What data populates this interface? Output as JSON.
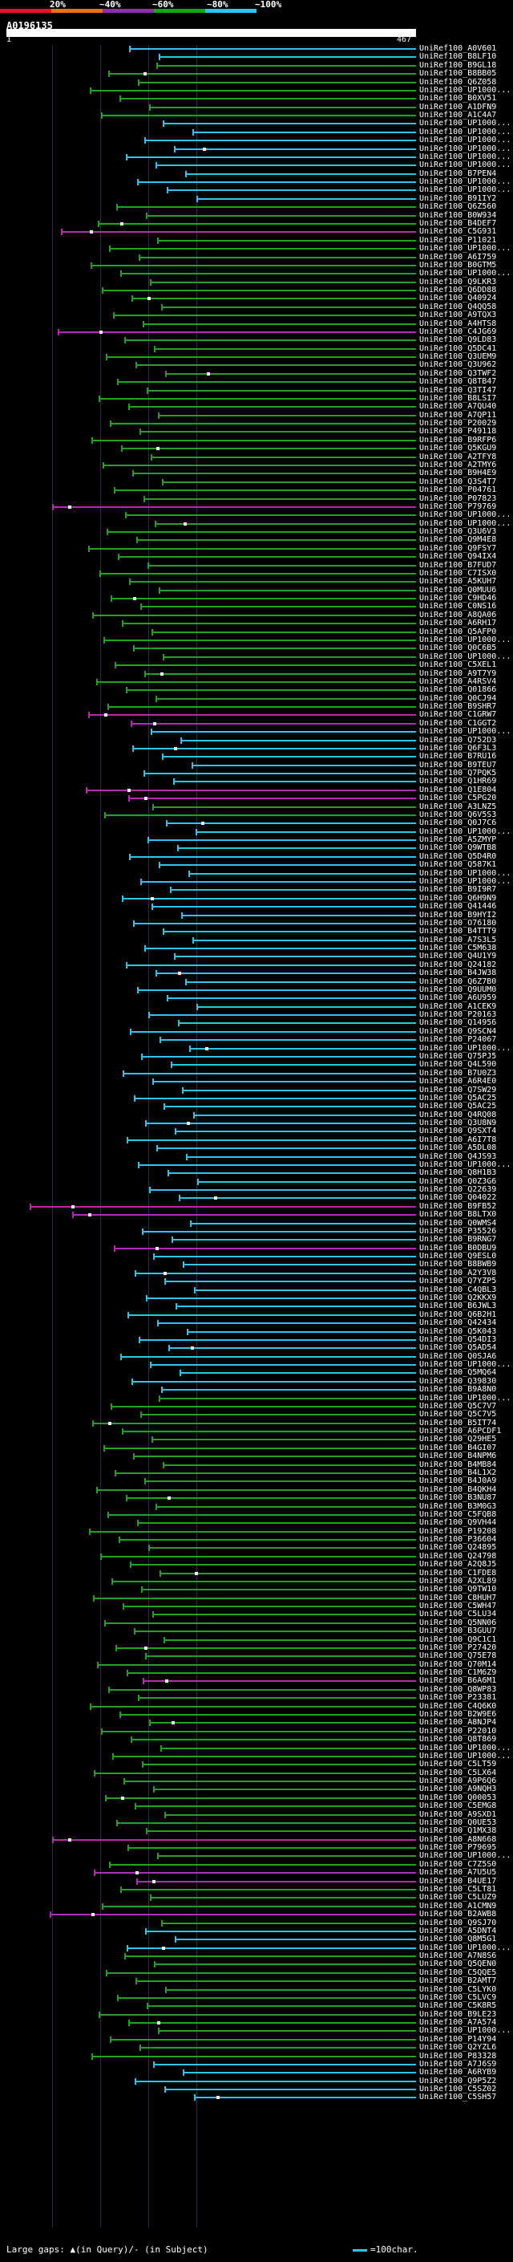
{
  "legend": {
    "labels": [
      "20%",
      "~40%",
      "~60%",
      "~80%",
      "~100%"
    ],
    "colors": [
      "#e8122a",
      "#e8711d",
      "#8c2fa8",
      "#1aa31a",
      "#2ec4f0"
    ]
  },
  "query": {
    "title": "A0196135",
    "start": "1",
    "end": "467"
  },
  "colors": {
    "cyan": "#2ec4f0",
    "green": "#21a321",
    "magenta": "#b52ab5"
  },
  "hits": [
    {
      "id": "UniRef100_A0V601",
      "color": "cyan"
    },
    {
      "id": "UniRef100_B8LF10",
      "color": "cyan"
    },
    {
      "id": "UniRef100_B9GL18",
      "color": "green"
    },
    {
      "id": "UniRef100_B8BB05",
      "color": "green"
    },
    {
      "id": "UniRef100_Q6Z058",
      "color": "green"
    },
    {
      "id": "UniRef100_UP1000...",
      "color": "green"
    },
    {
      "id": "UniRef100_B0XV51",
      "color": "green"
    },
    {
      "id": "UniRef100_A1DFN9",
      "color": "green"
    },
    {
      "id": "UniRef100_A1C4A7",
      "color": "green"
    },
    {
      "id": "UniRef100_UP1000...",
      "color": "cyan"
    },
    {
      "id": "UniRef100_UP1000...",
      "color": "cyan"
    },
    {
      "id": "UniRef100_UP1000...",
      "color": "cyan"
    },
    {
      "id": "UniRef100_UP1000...",
      "color": "cyan"
    },
    {
      "id": "UniRef100_UP1000...",
      "color": "cyan"
    },
    {
      "id": "UniRef100_UP1000...",
      "color": "cyan"
    },
    {
      "id": "UniRef100_B7PEN4",
      "color": "cyan"
    },
    {
      "id": "UniRef100_UP1000...",
      "color": "cyan"
    },
    {
      "id": "UniRef100_UP1000...",
      "color": "cyan"
    },
    {
      "id": "UniRef100_B91IY2",
      "color": "cyan"
    },
    {
      "id": "UniRef100_Q6Z560",
      "color": "green"
    },
    {
      "id": "UniRef100_B0W934",
      "color": "green"
    },
    {
      "id": "UniRef100_B4DEF7",
      "color": "green"
    },
    {
      "id": "UniRef100_C5G931",
      "color": "magenta"
    },
    {
      "id": "UniRef100_P11021",
      "color": "green"
    },
    {
      "id": "UniRef100_UP1000...",
      "color": "green"
    },
    {
      "id": "UniRef100_A6I759",
      "color": "green"
    },
    {
      "id": "UniRef100_B0GTM5",
      "color": "green"
    },
    {
      "id": "UniRef100_UP1000...",
      "color": "green"
    },
    {
      "id": "UniRef100_Q9LKR3",
      "color": "green"
    },
    {
      "id": "UniRef100_Q6DD88",
      "color": "green"
    },
    {
      "id": "UniRef100_Q40924",
      "color": "green"
    },
    {
      "id": "UniRef100_Q4QQ58",
      "color": "green"
    },
    {
      "id": "UniRef100_A9TQX3",
      "color": "green"
    },
    {
      "id": "UniRef100_A4HTS8",
      "color": "green"
    },
    {
      "id": "UniRef100_C4JG69",
      "color": "magenta"
    },
    {
      "id": "UniRef100_Q9LD83",
      "color": "green"
    },
    {
      "id": "UniRef100_Q5DC41",
      "color": "green"
    },
    {
      "id": "UniRef100_Q3UEM9",
      "color": "green"
    },
    {
      "id": "UniRef100_Q3U962",
      "color": "green"
    },
    {
      "id": "UniRef100_Q3TWF2",
      "green": true,
      "color": "green"
    },
    {
      "id": "UniRef100_Q8TB47",
      "color": "green"
    },
    {
      "id": "UniRef100_Q3TI47",
      "color": "green"
    },
    {
      "id": "UniRef100_B8LSI7",
      "color": "green"
    },
    {
      "id": "UniRef100_A7QU40",
      "color": "green"
    },
    {
      "id": "UniRef100_A7QP11",
      "color": "green"
    },
    {
      "id": "UniRef100_P20029",
      "color": "green"
    },
    {
      "id": "UniRef100_P49118",
      "color": "green"
    },
    {
      "id": "UniRef100_B9RFP6",
      "color": "green"
    },
    {
      "id": "UniRef100_Q5KGU9",
      "color": "green"
    },
    {
      "id": "UniRef100_A2TFY8",
      "color": "green"
    },
    {
      "id": "UniRef100_A2TMY6",
      "color": "green"
    },
    {
      "id": "UniRef100_B9H4E9",
      "color": "green"
    },
    {
      "id": "UniRef100_Q3S4T7",
      "color": "green"
    },
    {
      "id": "UniRef100_P04761",
      "color": "green"
    },
    {
      "id": "UniRef100_P07823",
      "color": "green"
    },
    {
      "id": "UniRef100_P79769",
      "color": "magenta"
    },
    {
      "id": "UniRef100_UP1000...",
      "color": "green"
    },
    {
      "id": "UniRef100_UP1000...",
      "color": "green"
    },
    {
      "id": "UniRef100_Q3U6V3",
      "color": "green"
    },
    {
      "id": "UniRef100_Q9M4E8",
      "color": "green"
    },
    {
      "id": "UniRef100_Q9FSY7",
      "color": "green"
    },
    {
      "id": "UniRef100_Q94IX4",
      "color": "green"
    },
    {
      "id": "UniRef100_B7FUD7",
      "color": "green"
    },
    {
      "id": "UniRef100_C7ISX0",
      "color": "green"
    },
    {
      "id": "UniRef100_A5KUH7",
      "color": "green"
    },
    {
      "id": "UniRef100_Q0MUU6",
      "color": "green"
    },
    {
      "id": "UniRef100_C9HD46",
      "color": "green"
    },
    {
      "id": "UniRef100_C0NS16",
      "color": "green"
    },
    {
      "id": "UniRef100_A8QA06",
      "color": "green"
    },
    {
      "id": "UniRef100_A6RH17",
      "color": "green"
    },
    {
      "id": "UniRef100_Q5AFP0",
      "color": "green"
    },
    {
      "id": "UniRef100_UP1000...",
      "color": "green"
    },
    {
      "id": "UniRef100_Q0C6B5",
      "color": "green"
    },
    {
      "id": "UniRef100_UP1000...",
      "color": "green"
    },
    {
      "id": "UniRef100_C5XEL1",
      "color": "green"
    },
    {
      "id": "UniRef100_A9T7Y9",
      "color": "green"
    },
    {
      "id": "UniRef100_A4RSV4",
      "color": "green"
    },
    {
      "id": "UniRef100_Q01866",
      "color": "green"
    },
    {
      "id": "UniRef100_Q0CJ94",
      "color": "green"
    },
    {
      "id": "UniRef100_B9SHR7",
      "color": "green"
    },
    {
      "id": "UniRef100_C1GRW7",
      "color": "magenta"
    },
    {
      "id": "UniRef100_C1GGT2",
      "color": "magenta"
    },
    {
      "id": "UniRef100_UP1000...",
      "color": "cyan"
    },
    {
      "id": "UniRef100_Q752D3",
      "color": "cyan"
    },
    {
      "id": "UniRef100_Q6F3L3",
      "color": "cyan"
    },
    {
      "id": "UniRef100_B7RU16",
      "color": "cyan"
    },
    {
      "id": "UniRef100_B9TEU7",
      "color": "cyan"
    },
    {
      "id": "UniRef100_Q7PQK5",
      "color": "cyan"
    },
    {
      "id": "UniRef100_Q1HR69",
      "color": "cyan"
    },
    {
      "id": "UniRef100_Q1E804",
      "color": "magenta"
    },
    {
      "id": "UniRef100_C5PG20",
      "color": "magenta"
    },
    {
      "id": "UniRef100_A3LNZ5",
      "color": "green"
    },
    {
      "id": "UniRef100_Q6V5S3",
      "color": "green"
    },
    {
      "id": "UniRef100_Q0J7C6",
      "color": "cyan"
    },
    {
      "id": "UniRef100_UP1000...",
      "color": "cyan"
    },
    {
      "id": "UniRef100_A5ZMYP",
      "color": "cyan"
    },
    {
      "id": "UniRef100_Q9WTB8",
      "color": "cyan"
    },
    {
      "id": "UniRef100_Q5D4R0",
      "color": "cyan"
    },
    {
      "id": "UniRef100_Q587K1",
      "color": "cyan"
    },
    {
      "id": "UniRef100_UP1000...",
      "color": "cyan"
    },
    {
      "id": "UniRef100_UP1000...",
      "color": "cyan"
    },
    {
      "id": "UniRef100_B9I9R7",
      "color": "cyan"
    },
    {
      "id": "UniRef100_Q6H9N9",
      "color": "cyan"
    },
    {
      "id": "UniRef100_Q41446",
      "color": "cyan"
    },
    {
      "id": "UniRef100_B9HYI2",
      "color": "cyan"
    },
    {
      "id": "UniRef100_O76180",
      "color": "cyan"
    },
    {
      "id": "UniRef100_B4TTT9",
      "color": "cyan"
    },
    {
      "id": "UniRef100_A7S3L5",
      "color": "cyan"
    },
    {
      "id": "UniRef100_C5M638",
      "color": "cyan"
    },
    {
      "id": "UniRef100_Q4U1Y9",
      "color": "cyan"
    },
    {
      "id": "UniRef100_Q24182",
      "color": "cyan"
    },
    {
      "id": "UniRef100_B4JW38",
      "color": "cyan"
    },
    {
      "id": "UniRef100_Q6Z7B0",
      "color": "cyan"
    },
    {
      "id": "UniRef100_Q9UUM0",
      "color": "cyan"
    },
    {
      "id": "UniRef100_A6U959",
      "color": "cyan"
    },
    {
      "id": "UniRef100_A1CEK9",
      "color": "cyan"
    },
    {
      "id": "UniRef100_P20163",
      "color": "cyan"
    },
    {
      "id": "UniRef100_Q14956",
      "color": "cyan"
    },
    {
      "id": "UniRef100_Q9SCN4",
      "color": "cyan"
    },
    {
      "id": "UniRef100_P24067",
      "color": "cyan"
    },
    {
      "id": "UniRef100_UP1000...",
      "color": "cyan"
    },
    {
      "id": "UniRef100_Q75PJ5",
      "color": "cyan"
    },
    {
      "id": "UniRef100_Q4L590",
      "color": "cyan"
    },
    {
      "id": "UniRef100_B7U0Z3",
      "color": "cyan"
    },
    {
      "id": "UniRef100_A6R4E0",
      "color": "cyan"
    },
    {
      "id": "UniRef100_Q7SW29",
      "color": "cyan"
    },
    {
      "id": "UniRef100_Q5AC25",
      "color": "cyan"
    },
    {
      "id": "UniRef100_Q5AC25",
      "color": "cyan"
    },
    {
      "id": "UniRef100_Q4RQ08",
      "color": "cyan"
    },
    {
      "id": "UniRef100_Q3U8N9",
      "color": "cyan"
    },
    {
      "id": "UniRef100_Q9SXT4",
      "color": "cyan"
    },
    {
      "id": "UniRef100_A6I7T8",
      "color": "cyan"
    },
    {
      "id": "UniRef100_A5DL08",
      "color": "cyan"
    },
    {
      "id": "UniRef100_Q4JS93",
      "color": "cyan"
    },
    {
      "id": "UniRef100_UP1000...",
      "color": "cyan"
    },
    {
      "id": "UniRef100_Q8H1B3",
      "color": "cyan"
    },
    {
      "id": "UniRef100_Q0Z3G6",
      "color": "cyan"
    },
    {
      "id": "UniRef100_Q22639",
      "color": "cyan"
    },
    {
      "id": "UniRef100_Q04022",
      "color": "cyan"
    },
    {
      "id": "UniRef100_B9FB52",
      "color": "magenta"
    },
    {
      "id": "UniRef100_B8LTX0",
      "color": "magenta"
    },
    {
      "id": "UniRef100_Q0WMS4",
      "color": "cyan"
    },
    {
      "id": "UniRef100_P35526",
      "color": "cyan"
    },
    {
      "id": "UniRef100_B9RNG7",
      "color": "cyan"
    },
    {
      "id": "UniRef100_B0DBU9",
      "color": "magenta"
    },
    {
      "id": "UniRef100_Q9ESL0",
      "color": "cyan"
    },
    {
      "id": "UniRef100_B8BWB9",
      "color": "cyan"
    },
    {
      "id": "UniRef100_A2Y3V8",
      "color": "cyan"
    },
    {
      "id": "UniRef100_Q7YZP5",
      "color": "cyan"
    },
    {
      "id": "UniRef100_C4QBL3",
      "color": "cyan"
    },
    {
      "id": "UniRef100_Q2KKX9",
      "color": "cyan"
    },
    {
      "id": "UniRef100_B6JWL3",
      "color": "cyan"
    },
    {
      "id": "UniRef100_Q6B2H1",
      "color": "cyan"
    },
    {
      "id": "UniRef100_Q42434",
      "color": "cyan"
    },
    {
      "id": "UniRef100_Q5K043",
      "color": "cyan"
    },
    {
      "id": "UniRef100_Q54DI3",
      "color": "cyan"
    },
    {
      "id": "UniRef100_Q5AD54",
      "color": "cyan"
    },
    {
      "id": "UniRef100_Q0SJA6",
      "color": "cyan"
    },
    {
      "id": "UniRef100_UP1000...",
      "color": "cyan"
    },
    {
      "id": "UniRef100_Q5MQ64",
      "color": "cyan"
    },
    {
      "id": "UniRef100_Q39830",
      "color": "cyan"
    },
    {
      "id": "UniRef100_B9A8N0",
      "color": "cyan"
    },
    {
      "id": "UniRef100_UP1000...",
      "color": "green"
    },
    {
      "id": "UniRef100_Q5C7V7",
      "color": "green"
    },
    {
      "id": "UniRef100_Q5C7V5",
      "color": "green"
    },
    {
      "id": "UniRef100_B5IT74",
      "color": "green"
    },
    {
      "id": "UniRef100_A6PCDF1",
      "color": "green"
    },
    {
      "id": "UniRef100_Q29HE5",
      "color": "green"
    },
    {
      "id": "UniRef100_B4GI07",
      "color": "green"
    },
    {
      "id": "UniRef100_B4NPM6",
      "color": "green"
    },
    {
      "id": "UniRef100_B4MB84",
      "color": "green"
    },
    {
      "id": "UniRef100_B4L1X2",
      "color": "green"
    },
    {
      "id": "UniRef100_B4J0A9",
      "color": "green"
    },
    {
      "id": "UniRef100_B4QKH4",
      "color": "green"
    },
    {
      "id": "UniRef100_B3NU87",
      "color": "green"
    },
    {
      "id": "UniRef100_B3M0G3",
      "color": "green"
    },
    {
      "id": "UniRef100_C5FQB8",
      "color": "green"
    },
    {
      "id": "UniRef100_Q9VH44",
      "color": "green"
    },
    {
      "id": "UniRef100_P19208",
      "color": "green"
    },
    {
      "id": "UniRef100_P36604",
      "color": "green"
    },
    {
      "id": "UniRef100_Q24895",
      "color": "green"
    },
    {
      "id": "UniRef100_Q24798",
      "color": "green"
    },
    {
      "id": "UniRef100_A2Q8J5",
      "color": "green"
    },
    {
      "id": "UniRef100_C1FDE8",
      "color": "green"
    },
    {
      "id": "UniRef100_A2XL89",
      "color": "green"
    },
    {
      "id": "UniRef100_Q9TW10",
      "color": "green"
    },
    {
      "id": "UniRef100_C8HUH7",
      "color": "green"
    },
    {
      "id": "UniRef100_C5WH47",
      "color": "green"
    },
    {
      "id": "UniRef100_C5LU34",
      "color": "green"
    },
    {
      "id": "UniRef100_Q5NN06",
      "color": "green"
    },
    {
      "id": "UniRef100_B3GUU7",
      "color": "green"
    },
    {
      "id": "UniRef100_Q9C1C1",
      "color": "green"
    },
    {
      "id": "UniRef100_P27420",
      "color": "green"
    },
    {
      "id": "UniRef100_Q75E78",
      "color": "green"
    },
    {
      "id": "UniRef100_Q70M14",
      "color": "green"
    },
    {
      "id": "UniRef100_C1M6Z9",
      "color": "green"
    },
    {
      "id": "UniRef100_B6A6M1",
      "color": "magenta"
    },
    {
      "id": "UniRef100_Q8WP83",
      "color": "green"
    },
    {
      "id": "UniRef100_P23381",
      "color": "green"
    },
    {
      "id": "UniRef100_C4Q6K0",
      "color": "green"
    },
    {
      "id": "UniRef100_B2W9E6",
      "color": "green"
    },
    {
      "id": "UniRef100_A8NJP4",
      "color": "green"
    },
    {
      "id": "UniRef100_P22010",
      "color": "green"
    },
    {
      "id": "UniRef100_Q8T869",
      "color": "green"
    },
    {
      "id": "UniRef100_UP1000...",
      "color": "green"
    },
    {
      "id": "UniRef100_UP1000...",
      "color": "green"
    },
    {
      "id": "UniRef100_C5LT59",
      "color": "green"
    },
    {
      "id": "UniRef100_C5LX64",
      "color": "green"
    },
    {
      "id": "UniRef100_A9P6Q6",
      "color": "green"
    },
    {
      "id": "UniRef100_A9NQH3",
      "color": "green"
    },
    {
      "id": "UniRef100_Q00053",
      "color": "green"
    },
    {
      "id": "UniRef100_C5EMG8",
      "color": "green"
    },
    {
      "id": "UniRef100_A9SXD1",
      "color": "green"
    },
    {
      "id": "UniRef100_Q0UE53",
      "color": "green"
    },
    {
      "id": "UniRef100_Q1MX38",
      "color": "green"
    },
    {
      "id": "UniRef100_A8N668",
      "color": "magenta"
    },
    {
      "id": "UniRef100_P79695",
      "color": "green"
    },
    {
      "id": "UniRef100_UP1000...",
      "color": "green"
    },
    {
      "id": "UniRef100_C7Z5S0",
      "color": "green"
    },
    {
      "id": "UniRef100_A7U5U5",
      "color": "magenta"
    },
    {
      "id": "UniRef100_B4UE17",
      "color": "magenta"
    },
    {
      "id": "UniRef100_C5LT81",
      "color": "green"
    },
    {
      "id": "UniRef100_C5LUZ9",
      "color": "green"
    },
    {
      "id": "UniRef100_A1CMN9",
      "color": "green"
    },
    {
      "id": "UniRef100_B2AWB8",
      "color": "magenta"
    },
    {
      "id": "UniRef100_Q9SJ70",
      "color": "green"
    },
    {
      "id": "UniRef100_A5DNT4",
      "color": "cyan"
    },
    {
      "id": "UniRef100_Q8M5G1",
      "color": "cyan"
    },
    {
      "id": "UniRef100_UP1000...",
      "color": "cyan"
    },
    {
      "id": "UniRef100_A7N8S6",
      "color": "green"
    },
    {
      "id": "UniRef100_Q5QEN0",
      "color": "green"
    },
    {
      "id": "UniRef100_C5QQE5",
      "color": "green"
    },
    {
      "id": "UniRef100_B2AMT7",
      "color": "green"
    },
    {
      "id": "UniRef100_C5LYK0",
      "color": "green"
    },
    {
      "id": "UniRef100_C5LVC9",
      "color": "green"
    },
    {
      "id": "UniRef100_C5K8R5",
      "color": "green"
    },
    {
      "id": "UniRef100_B9LE23",
      "color": "green"
    },
    {
      "id": "UniRef100_A7A574",
      "color": "green"
    },
    {
      "id": "UniRef100_UP1000...",
      "color": "green"
    },
    {
      "id": "UniRef100_P14Y94",
      "color": "green"
    },
    {
      "id": "UniRef100_Q2YZL6",
      "color": "green"
    },
    {
      "id": "UniRef100_P83328",
      "color": "green"
    },
    {
      "id": "UniRef100_A7J6S9",
      "color": "cyan"
    },
    {
      "id": "UniRef100_A6RYB9",
      "color": "cyan"
    },
    {
      "id": "UniRef100_Q9P5Z2",
      "color": "cyan"
    },
    {
      "id": "UniRef100_C5SZ02",
      "color": "cyan"
    },
    {
      "id": "UniRef100_C5SH57",
      "color": "cyan"
    }
  ],
  "footer": {
    "left": "Large gaps: ▲(in Query)/- (in Subject)",
    "right": "=100char."
  }
}
